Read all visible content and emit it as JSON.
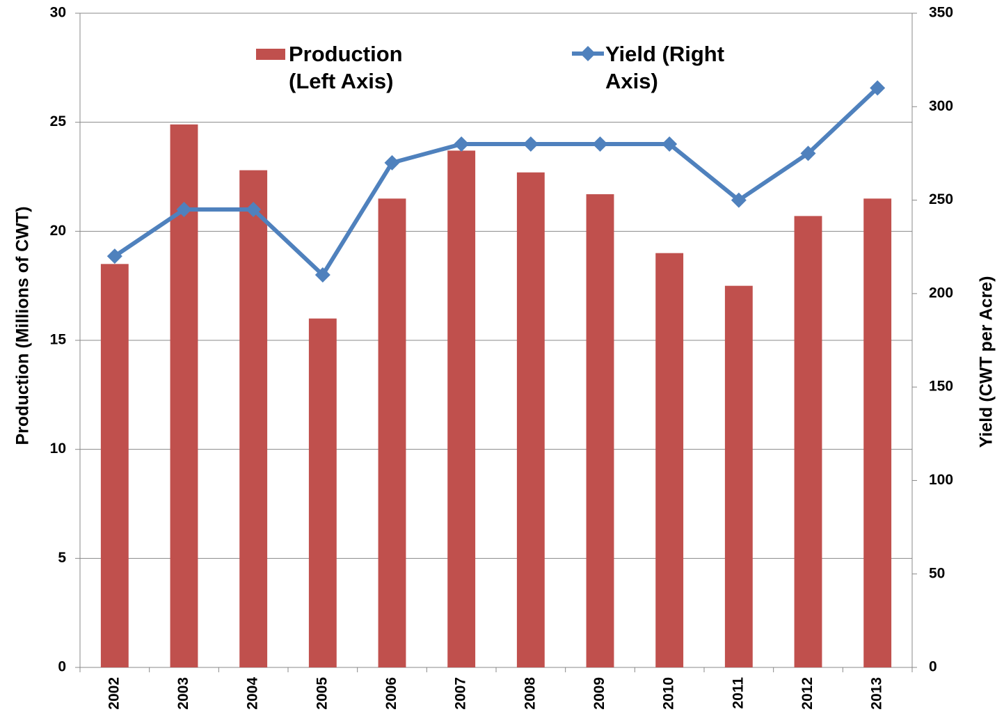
{
  "chart_data": {
    "type": "bar_line",
    "categories": [
      "2002",
      "2003",
      "2004",
      "2005",
      "2006",
      "2007",
      "2008",
      "2009",
      "2010",
      "2011",
      "2012",
      "2013"
    ],
    "series": [
      {
        "name": "Production (Left Axis)",
        "type": "bar",
        "color": "#c0504d",
        "values": [
          18.5,
          24.9,
          22.8,
          16.0,
          21.5,
          23.7,
          22.7,
          21.7,
          19.0,
          17.5,
          20.7,
          21.5
        ]
      },
      {
        "name": "Yield (Right Axis)",
        "type": "line",
        "axis": "y2",
        "color": "#4f81bd",
        "values": [
          220,
          245,
          245,
          210,
          270,
          280,
          280,
          280,
          280,
          250,
          275,
          310
        ]
      }
    ],
    "ylabel": "Production (Millions of CWT)",
    "y2label": "Yield (CWT per Acre)",
    "ylim": [
      0,
      30
    ],
    "yticks": [
      0,
      5,
      10,
      15,
      20,
      25,
      30
    ],
    "y2lim": [
      0,
      350
    ],
    "y2ticks": [
      0,
      50,
      100,
      150,
      200,
      250,
      300,
      350
    ],
    "grid": true,
    "legend": "top"
  }
}
